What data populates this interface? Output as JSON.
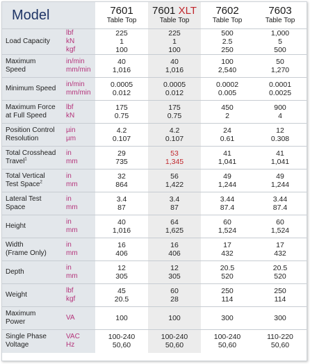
{
  "header": {
    "title": "Model",
    "models": [
      {
        "number": "7601",
        "suffix": "",
        "subtitle": "Table Top"
      },
      {
        "number": "7601",
        "suffix": "XLT",
        "subtitle": "Table Top"
      },
      {
        "number": "7602",
        "suffix": "",
        "subtitle": "Table Top"
      },
      {
        "number": "7603",
        "suffix": "",
        "subtitle": "Table Top"
      }
    ]
  },
  "colors": {
    "label_bg": "#e3e7eb",
    "unit_text": "#b4337a",
    "highlight_text": "#c0272d",
    "title_text": "#1f3566",
    "alt_column_bg": "#ececec"
  },
  "rows": [
    {
      "label": [
        "Load Capacity"
      ],
      "units": [
        "lbf",
        "kN",
        "kgf"
      ],
      "values": [
        [
          "225",
          "1",
          "100"
        ],
        [
          "225",
          "1",
          "100"
        ],
        [
          "500",
          "2.5",
          "250"
        ],
        [
          "1,000",
          "5",
          "500"
        ]
      ]
    },
    {
      "label": [
        "Maximum",
        "Speed"
      ],
      "units": [
        "in/min",
        "mm/min"
      ],
      "values": [
        [
          "40",
          "1,016"
        ],
        [
          "40",
          "1,016"
        ],
        [
          "100",
          "2,540"
        ],
        [
          "50",
          "1,270"
        ]
      ]
    },
    {
      "label": [
        "Minimum Speed"
      ],
      "units": [
        "in/min",
        "mm/min"
      ],
      "values": [
        [
          "0.0005",
          "0.012"
        ],
        [
          "0.0005",
          "0.012"
        ],
        [
          "0.0002",
          "0.005"
        ],
        [
          "0.0001",
          "0.0025"
        ]
      ]
    },
    {
      "label": [
        "Maximum Force",
        "at Full Speed"
      ],
      "units": [
        "lbf",
        "kN"
      ],
      "values": [
        [
          "175",
          "0.75"
        ],
        [
          "175",
          "0.75"
        ],
        [
          "450",
          "2"
        ],
        [
          "900",
          "4"
        ]
      ]
    },
    {
      "label": [
        "Position Control",
        "Resolution"
      ],
      "units": [
        "µin",
        "µm"
      ],
      "values": [
        [
          "4.2",
          "0.107"
        ],
        [
          "4.2",
          "0.107"
        ],
        [
          "24",
          "0.61"
        ],
        [
          "12",
          "0.308"
        ]
      ]
    },
    {
      "label": [
        "Total Crosshead",
        "Travel"
      ],
      "label_sup": "1",
      "units": [
        "in",
        "mm"
      ],
      "values": [
        [
          "29",
          "735"
        ],
        [
          "53",
          "1,345"
        ],
        [
          "41",
          "1,041"
        ],
        [
          "41",
          "1,041"
        ]
      ]
    },
    {
      "label": [
        "Total Vertical",
        "Test Space"
      ],
      "label_sup": "2",
      "units": [
        "in",
        "mm"
      ],
      "values": [
        [
          "32",
          "864"
        ],
        [
          "56",
          "1,422"
        ],
        [
          "49",
          "1,244"
        ],
        [
          "49",
          "1,244"
        ]
      ]
    },
    {
      "label": [
        "Lateral Test",
        "Space"
      ],
      "units": [
        "in",
        "mm"
      ],
      "values": [
        [
          "3.4",
          "87"
        ],
        [
          "3.4",
          "87"
        ],
        [
          "3.44",
          "87.4"
        ],
        [
          "3.44",
          "87.4"
        ]
      ]
    },
    {
      "label": [
        "Height"
      ],
      "units": [
        "in",
        "mm"
      ],
      "values": [
        [
          "40",
          "1,016"
        ],
        [
          "64",
          "1,625"
        ],
        [
          "60",
          "1,524"
        ],
        [
          "60",
          "1,524"
        ]
      ]
    },
    {
      "label": [
        "Width",
        "(Frame Only)"
      ],
      "units": [
        "in",
        "mm"
      ],
      "values": [
        [
          "16",
          "406"
        ],
        [
          "16",
          "406"
        ],
        [
          "17",
          "432"
        ],
        [
          "17",
          "432"
        ]
      ]
    },
    {
      "label": [
        "Depth"
      ],
      "units": [
        "in",
        "mm"
      ],
      "values": [
        [
          "12",
          "305"
        ],
        [
          "12",
          "305"
        ],
        [
          "20.5",
          "520"
        ],
        [
          "20.5",
          "520"
        ]
      ]
    },
    {
      "label": [
        "Weight"
      ],
      "units": [
        "lbf",
        "kgf"
      ],
      "values": [
        [
          "45",
          "20.5"
        ],
        [
          "60",
          "28"
        ],
        [
          "250",
          "114"
        ],
        [
          "250",
          "114"
        ]
      ]
    },
    {
      "label": [
        "Maximum",
        "Power"
      ],
      "units": [
        "VA"
      ],
      "values": [
        [
          "100"
        ],
        [
          "100"
        ],
        [
          "300"
        ],
        [
          "300"
        ]
      ]
    },
    {
      "label": [
        "Single Phase",
        "Voltage"
      ],
      "units": [
        "VAC",
        "Hz"
      ],
      "values": [
        [
          "100-240",
          "50,60"
        ],
        [
          "100-240",
          "50,60"
        ],
        [
          "100-240",
          "50,60"
        ],
        [
          "110-220",
          "50,60"
        ]
      ]
    }
  ]
}
